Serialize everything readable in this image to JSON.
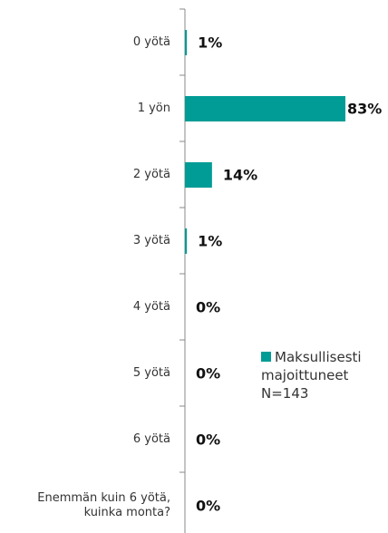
{
  "chart_data": {
    "type": "bar",
    "orientation": "horizontal",
    "categories": [
      "0 yötä",
      "1 yön",
      "2 yötä",
      "3 yötä",
      "4 yötä",
      "5 yötä",
      "6 yötä",
      "Enemmän kuin 6 yötä, kuinka monta?"
    ],
    "series": [
      {
        "name": "Maksullisesti majoittuneet N=143",
        "color": "#009c95",
        "values": [
          1,
          83,
          14,
          1,
          0,
          0,
          0,
          0
        ],
        "value_labels": [
          "1%",
          "83%",
          "14%",
          "1%",
          "0%",
          "0%",
          "0%",
          "0%"
        ]
      }
    ],
    "legend": "right"
  }
}
